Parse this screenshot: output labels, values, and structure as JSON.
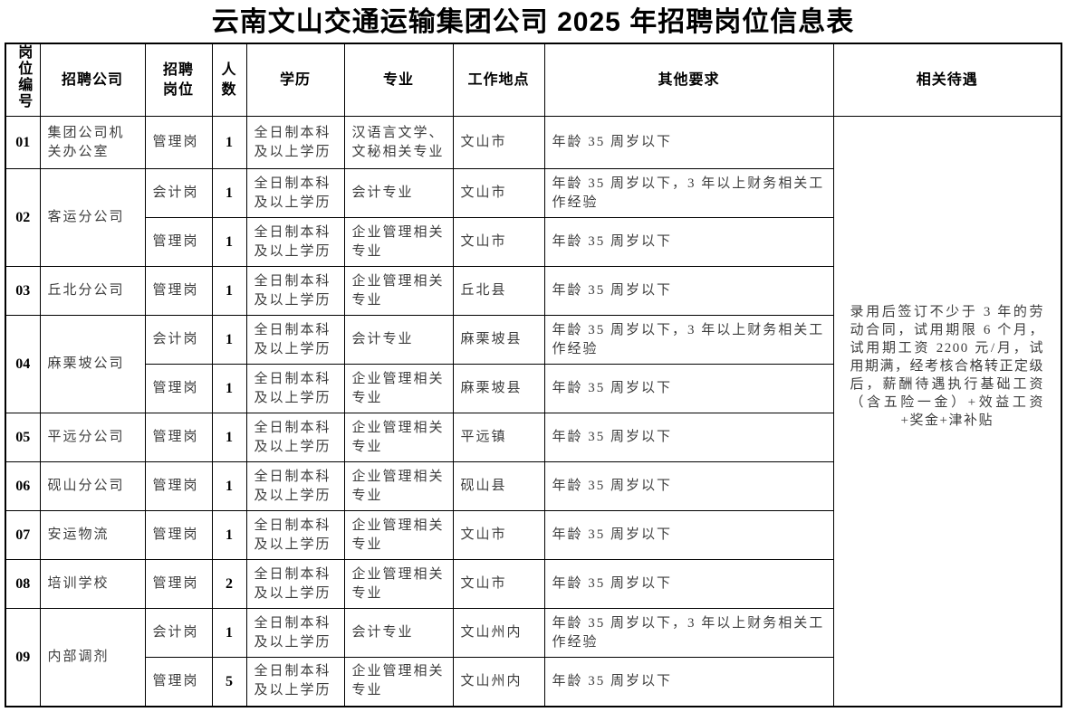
{
  "page": {
    "title": "云南文山交通运输集团公司 2025 年招聘岗位信息表"
  },
  "table": {
    "headers": [
      {
        "label": "岗位编号"
      },
      {
        "label": "招聘公司"
      },
      {
        "label": "招聘岗位",
        "display": "招聘\n岗位"
      },
      {
        "label": "人数",
        "display": "人\n数"
      },
      {
        "label": "学历"
      },
      {
        "label": "专业"
      },
      {
        "label": "工作地点"
      },
      {
        "label": "其他要求"
      },
      {
        "label": "相关待遇"
      }
    ],
    "benefits": "录用后签订不少于 3 年的劳动合同，试用期限 6 个月，试用期工资 2200 元/月，试用期满，经考核合格转正定级后，薪酬待遇执行基础工资（含五险一金）+效益工资+奖金+津补贴",
    "groups": [
      {
        "id": "01",
        "company": "集团公司机关办公室",
        "rows": [
          {
            "post": "管理岗",
            "count": "1",
            "education": "全日制本科及以上学历",
            "major": "汉语言文学、文秘相关专业",
            "location": "文山市",
            "requirements": "年龄 35 周岁以下"
          }
        ]
      },
      {
        "id": "02",
        "company": "客运分公司",
        "rows": [
          {
            "post": "会计岗",
            "count": "1",
            "education": "全日制本科及以上学历",
            "major": "会计专业",
            "location": "文山市",
            "requirements": "年龄 35 周岁以下，3 年以上财务相关工作经验"
          },
          {
            "post": "管理岗",
            "count": "1",
            "education": "全日制本科及以上学历",
            "major": "企业管理相关专业",
            "location": "文山市",
            "requirements": "年龄 35 周岁以下"
          }
        ]
      },
      {
        "id": "03",
        "company": "丘北分公司",
        "rows": [
          {
            "post": "管理岗",
            "count": "1",
            "education": "全日制本科及以上学历",
            "major": "企业管理相关专业",
            "location": "丘北县",
            "requirements": "年龄 35 周岁以下"
          }
        ]
      },
      {
        "id": "04",
        "company": "麻栗坡公司",
        "rows": [
          {
            "post": "会计岗",
            "count": "1",
            "education": "全日制本科及以上学历",
            "major": "会计专业",
            "location": "麻栗坡县",
            "requirements": "年龄 35 周岁以下，3 年以上财务相关工作经验"
          },
          {
            "post": "管理岗",
            "count": "1",
            "education": "全日制本科及以上学历",
            "major": "企业管理相关专业",
            "location": "麻栗坡县",
            "requirements": "年龄 35 周岁以下"
          }
        ]
      },
      {
        "id": "05",
        "company": "平远分公司",
        "rows": [
          {
            "post": "管理岗",
            "count": "1",
            "education": "全日制本科及以上学历",
            "major": "企业管理相关专业",
            "location": "平远镇",
            "requirements": "年龄 35 周岁以下"
          }
        ]
      },
      {
        "id": "06",
        "company": "砚山分公司",
        "rows": [
          {
            "post": "管理岗",
            "count": "1",
            "education": "全日制本科及以上学历",
            "major": "企业管理相关专业",
            "location": "砚山县",
            "requirements": "年龄 35 周岁以下"
          }
        ]
      },
      {
        "id": "07",
        "company": "安运物流",
        "rows": [
          {
            "post": "管理岗",
            "count": "1",
            "education": "全日制本科及以上学历",
            "major": "企业管理相关专业",
            "location": "文山市",
            "requirements": "年龄 35 周岁以下"
          }
        ]
      },
      {
        "id": "08",
        "company": "培训学校",
        "rows": [
          {
            "post": "管理岗",
            "count": "2",
            "education": "全日制本科及以上学历",
            "major": "企业管理相关专业",
            "location": "文山市",
            "requirements": "年龄 35 周岁以下"
          }
        ]
      },
      {
        "id": "09",
        "company": "内部调剂",
        "rows": [
          {
            "post": "会计岗",
            "count": "1",
            "education": "全日制本科及以上学历",
            "major": "会计专业",
            "location": "文山州内",
            "requirements": "年龄 35 周岁以下，3 年以上财务相关工作经验"
          },
          {
            "post": "管理岗",
            "count": "5",
            "education": "全日制本科及以上学历",
            "major": "企业管理相关专业",
            "location": "文山州内",
            "requirements": "年龄 35 周岁以下"
          }
        ]
      }
    ]
  }
}
